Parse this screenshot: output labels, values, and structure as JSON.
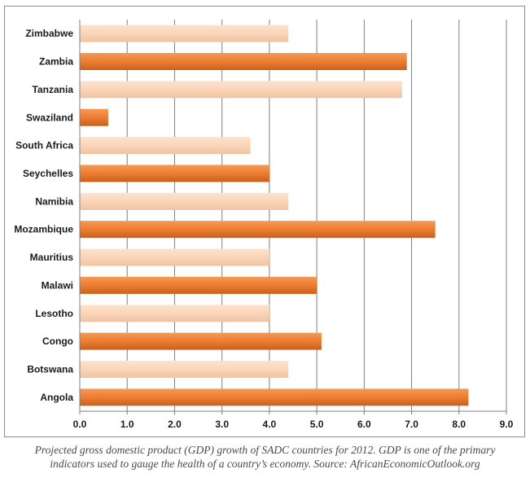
{
  "chart_data": {
    "type": "bar",
    "orientation": "horizontal",
    "categories": [
      "Zimbabwe",
      "Zambia",
      "Tanzania",
      "Swaziland",
      "South Africa",
      "Seychelles",
      "Namibia",
      "Mozambique",
      "Mauritius",
      "Malawi",
      "Lesotho",
      "Congo",
      "Botswana",
      "Angola"
    ],
    "values": [
      4.4,
      6.9,
      6.8,
      0.6,
      3.6,
      4.0,
      4.4,
      7.5,
      4.0,
      5.0,
      4.0,
      5.1,
      4.4,
      8.2
    ],
    "bar_colors": [
      "#fad5b8",
      "#ec7d32",
      "#fad5b8",
      "#ec7d32",
      "#fad5b8",
      "#ec7d32",
      "#fad5b8",
      "#ec7d32",
      "#fad5b8",
      "#ec7d32",
      "#fad5b8",
      "#ec7d32",
      "#fad5b8",
      "#ec7d32"
    ],
    "x_ticks": [
      "0.0",
      "1.0",
      "2.0",
      "3.0",
      "4.0",
      "5.0",
      "6.0",
      "7.0",
      "8.0",
      "9.0"
    ],
    "xlim": [
      0,
      9
    ],
    "xlabel": "",
    "ylabel": "",
    "title": "",
    "grid": "vertical",
    "legend": "none"
  },
  "caption": {
    "line1": "Projected gross domestic product (GDP) growth of SADC countries for 2012. GDP is one of the primary",
    "line2": "indicators used to gauge the health of a country’s economy. Source: AfricanEconomicOutlook.org"
  },
  "colors": {
    "dark_bar": "#ec7d32",
    "light_bar": "#fad5b8",
    "gridline": "#7f7f7f",
    "frame": "#8c8c8c"
  }
}
